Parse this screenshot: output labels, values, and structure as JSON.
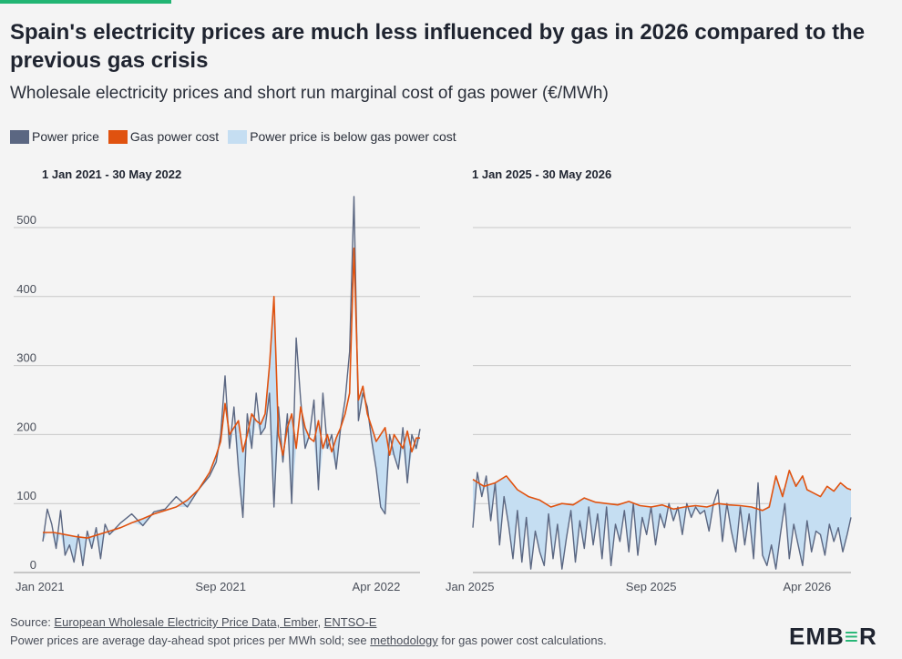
{
  "header": {
    "title": "Spain's electricity prices are much less influenced by gas in 2026 compared to the previous gas crisis",
    "subtitle": "Wholesale electricity prices and short run marginal cost of gas power (€/MWh)"
  },
  "legend": [
    {
      "label": "Power price",
      "color": "#5b6782"
    },
    {
      "label": "Gas power cost",
      "color": "#e0520f"
    },
    {
      "label": "Power price is below gas power cost",
      "color": "#c5def2"
    }
  ],
  "colors": {
    "power": "#5b6782",
    "gas": "#e0520f",
    "fill": "#c5def2",
    "grid": "#c8c8c8"
  },
  "chart_data": [
    {
      "type": "line",
      "title": "1 Jan 2021 - 30 May 2022",
      "x_unit": "month",
      "xlim": [
        "2021-01-01",
        "2022-05-30"
      ],
      "x_ticks": [
        {
          "label": "Jan 2021",
          "x": 0
        },
        {
          "label": "Sep 2021",
          "x": 8
        },
        {
          "label": "Apr 2022",
          "x": 15
        }
      ],
      "ylim": [
        0,
        550
      ],
      "y_ticks": [
        0,
        100,
        200,
        300,
        400,
        500
      ],
      "series": [
        {
          "name": "Power price",
          "x": [
            0,
            0.2,
            0.4,
            0.6,
            0.8,
            1.0,
            1.2,
            1.4,
            1.6,
            1.8,
            2.0,
            2.2,
            2.4,
            2.6,
            2.8,
            3.0,
            3.5,
            4.0,
            4.5,
            5.0,
            5.5,
            6.0,
            6.5,
            7.0,
            7.5,
            7.8,
            8.0,
            8.2,
            8.4,
            8.6,
            8.8,
            9.0,
            9.2,
            9.4,
            9.6,
            9.8,
            10.0,
            10.2,
            10.4,
            10.6,
            10.8,
            11.0,
            11.2,
            11.4,
            11.6,
            11.8,
            12.0,
            12.2,
            12.4,
            12.6,
            12.8,
            13.0,
            13.2,
            13.4,
            13.6,
            13.8,
            14.0,
            14.2,
            14.4,
            14.6,
            14.8,
            15.0,
            15.2,
            15.4,
            15.6,
            15.8,
            16.0,
            16.2,
            16.4,
            16.6,
            16.8,
            16.97
          ],
          "values": [
            45,
            92,
            70,
            35,
            90,
            25,
            40,
            15,
            55,
            10,
            60,
            35,
            65,
            20,
            70,
            55,
            72,
            85,
            68,
            88,
            92,
            110,
            95,
            120,
            140,
            160,
            200,
            285,
            180,
            240,
            150,
            80,
            230,
            180,
            260,
            200,
            210,
            260,
            95,
            240,
            160,
            230,
            100,
            340,
            250,
            180,
            200,
            250,
            120,
            260,
            180,
            200,
            150,
            210,
            250,
            320,
            545,
            220,
            260,
            240,
            190,
            150,
            95,
            85,
            200,
            170,
            150,
            210,
            130,
            200,
            180,
            208
          ]
        },
        {
          "name": "Gas power cost",
          "x": [
            0,
            0.5,
            1.0,
            1.5,
            2.0,
            2.5,
            3.0,
            3.5,
            4.0,
            4.5,
            5.0,
            5.5,
            6.0,
            6.5,
            7.0,
            7.5,
            7.8,
            8.0,
            8.2,
            8.4,
            8.6,
            8.8,
            9.0,
            9.2,
            9.4,
            9.6,
            9.8,
            10.0,
            10.2,
            10.4,
            10.6,
            10.8,
            11.0,
            11.2,
            11.4,
            11.6,
            11.8,
            12.0,
            12.2,
            12.4,
            12.6,
            12.8,
            13.0,
            13.2,
            13.4,
            13.6,
            13.8,
            14.0,
            14.2,
            14.4,
            14.6,
            14.8,
            15.0,
            15.2,
            15.4,
            15.6,
            15.8,
            16.0,
            16.2,
            16.4,
            16.6,
            16.8,
            16.97
          ],
          "values": [
            58,
            58,
            55,
            52,
            50,
            55,
            60,
            65,
            72,
            78,
            85,
            90,
            95,
            105,
            120,
            145,
            170,
            190,
            245,
            200,
            210,
            220,
            175,
            200,
            230,
            220,
            215,
            230,
            300,
            400,
            200,
            170,
            210,
            230,
            180,
            240,
            210,
            195,
            190,
            220,
            180,
            200,
            175,
            195,
            210,
            230,
            260,
            470,
            250,
            270,
            230,
            210,
            190,
            200,
            210,
            170,
            200,
            190,
            180,
            205,
            175,
            195,
            195
          ]
        }
      ]
    },
    {
      "type": "line",
      "title": "1 Jan 2025 - 30 May 2026",
      "x_unit": "month",
      "xlim": [
        "2025-01-01",
        "2026-05-30"
      ],
      "x_ticks": [
        {
          "label": "Jan 2025",
          "x": 0
        },
        {
          "label": "Sep 2025",
          "x": 8
        },
        {
          "label": "Apr 2026",
          "x": 15
        }
      ],
      "ylim": [
        0,
        550
      ],
      "y_ticks": [
        0,
        100,
        200,
        300,
        400,
        500
      ],
      "series": [
        {
          "name": "Power price",
          "x": [
            0,
            0.2,
            0.4,
            0.6,
            0.8,
            1.0,
            1.2,
            1.4,
            1.6,
            1.8,
            2.0,
            2.2,
            2.4,
            2.6,
            2.8,
            3.0,
            3.2,
            3.4,
            3.6,
            3.8,
            4.0,
            4.2,
            4.4,
            4.6,
            4.8,
            5.0,
            5.2,
            5.4,
            5.6,
            5.8,
            6.0,
            6.2,
            6.4,
            6.6,
            6.8,
            7.0,
            7.2,
            7.4,
            7.6,
            7.8,
            8.0,
            8.2,
            8.4,
            8.6,
            8.8,
            9.0,
            9.2,
            9.4,
            9.6,
            9.8,
            10.0,
            10.2,
            10.4,
            10.6,
            10.8,
            11.0,
            11.2,
            11.4,
            11.6,
            11.8,
            12.0,
            12.2,
            12.4,
            12.6,
            12.8,
            13.0,
            13.2,
            13.4,
            13.6,
            13.8,
            14.0,
            14.2,
            14.4,
            14.6,
            14.8,
            15.0,
            15.2,
            15.4,
            15.6,
            15.8,
            16.0,
            16.2,
            16.4,
            16.6,
            16.8,
            16.97
          ],
          "values": [
            65,
            145,
            110,
            140,
            75,
            130,
            40,
            110,
            70,
            20,
            90,
            15,
            80,
            5,
            60,
            30,
            10,
            85,
            20,
            70,
            5,
            50,
            90,
            15,
            75,
            35,
            95,
            40,
            85,
            20,
            95,
            10,
            70,
            45,
            90,
            30,
            100,
            25,
            80,
            55,
            95,
            40,
            85,
            65,
            100,
            75,
            95,
            55,
            100,
            80,
            95,
            85,
            90,
            60,
            100,
            120,
            45,
            100,
            60,
            30,
            95,
            40,
            85,
            20,
            130,
            25,
            10,
            40,
            5,
            55,
            100,
            20,
            70,
            40,
            10,
            75,
            30,
            60,
            55,
            25,
            70,
            45,
            65,
            30,
            55,
            80
          ]
        },
        {
          "name": "Gas power cost",
          "x": [
            0,
            0.5,
            1.0,
            1.5,
            2.0,
            2.5,
            3.0,
            3.5,
            4.0,
            4.5,
            5.0,
            5.5,
            6.0,
            6.5,
            7.0,
            7.5,
            8.0,
            8.5,
            9.0,
            9.5,
            10.0,
            10.5,
            11.0,
            11.5,
            12.0,
            12.5,
            13.0,
            13.3,
            13.6,
            13.9,
            14.2,
            14.5,
            14.8,
            15.0,
            15.3,
            15.6,
            15.9,
            16.2,
            16.5,
            16.8,
            16.97
          ],
          "values": [
            135,
            125,
            130,
            140,
            120,
            110,
            105,
            95,
            100,
            98,
            108,
            102,
            100,
            98,
            103,
            97,
            95,
            98,
            92,
            95,
            97,
            95,
            100,
            98,
            97,
            95,
            90,
            95,
            140,
            110,
            148,
            125,
            140,
            120,
            115,
            110,
            125,
            118,
            130,
            122,
            120
          ]
        }
      ]
    }
  ],
  "footer": {
    "source_prefix": "Source: ",
    "source_link1": "European Wholesale Electricity Price Data, Ember",
    "source_sep": ", ",
    "source_link2": "ENTSO-E",
    "note_prefix": "Power prices are average day-ahead spot prices per MWh sold; see ",
    "note_link": "methodology",
    "note_suffix": " for gas power cost calculations."
  },
  "logo": {
    "part1": "EMB",
    "part2": "≡",
    "part3": "R"
  }
}
